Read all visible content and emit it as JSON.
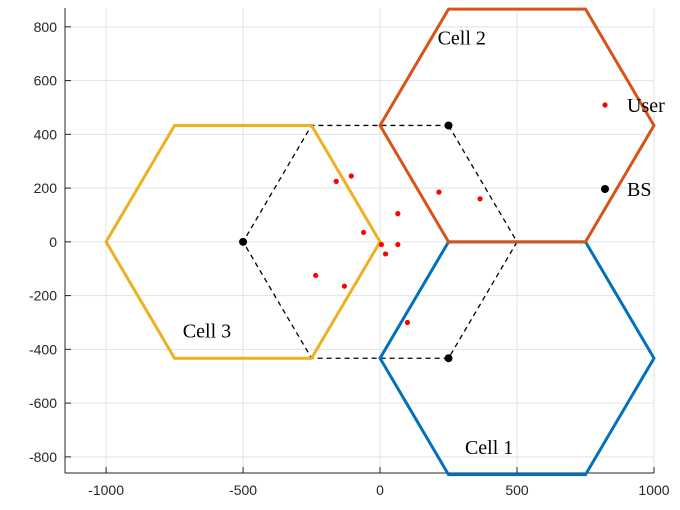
{
  "chart_data": {
    "type": "scatter",
    "xlim": [
      -1150,
      1000
    ],
    "ylim": [
      -860,
      870
    ],
    "xticks": [
      -1000,
      -500,
      0,
      500,
      1000
    ],
    "yticks": [
      -800,
      -600,
      -400,
      -200,
      0,
      200,
      400,
      600,
      800
    ],
    "grid": true,
    "legend_position": "right",
    "cells": [
      {
        "name": "Cell 1",
        "color": "#0072BD",
        "center": [
          500,
          -433
        ],
        "radius": 500,
        "label_at": [
          310,
          -790
        ]
      },
      {
        "name": "Cell 2",
        "color": "#D95319",
        "center": [
          500,
          433
        ],
        "radius": 500,
        "label_at": [
          210,
          735
        ]
      },
      {
        "name": "Cell 3",
        "color": "#EDB120",
        "center": [
          -500,
          0
        ],
        "radius": 500,
        "label_at": [
          -720,
          -355
        ]
      }
    ],
    "series": [
      {
        "name": "User",
        "color": "#ff0000",
        "points": [
          [
            -160,
            225
          ],
          [
            -105,
            245
          ],
          [
            -60,
            35
          ],
          [
            5,
            -10
          ],
          [
            20,
            -45
          ],
          [
            65,
            -10
          ],
          [
            65,
            105
          ],
          [
            215,
            185
          ],
          [
            365,
            160
          ],
          [
            -235,
            -125
          ],
          [
            -130,
            -165
          ],
          [
            100,
            -300
          ]
        ]
      },
      {
        "name": "BS",
        "color": "#000000",
        "points": [
          [
            250,
            433
          ],
          [
            -500,
            0
          ],
          [
            250,
            -433
          ]
        ]
      }
    ],
    "bs_links": {
      "style": "dashed",
      "color": "#000000",
      "polygon": [
        [
          250,
          433
        ],
        [
          500,
          0
        ],
        [
          250,
          -433
        ],
        [
          -250,
          -433
        ],
        [
          -500,
          0
        ],
        [
          -250,
          433
        ]
      ]
    }
  }
}
